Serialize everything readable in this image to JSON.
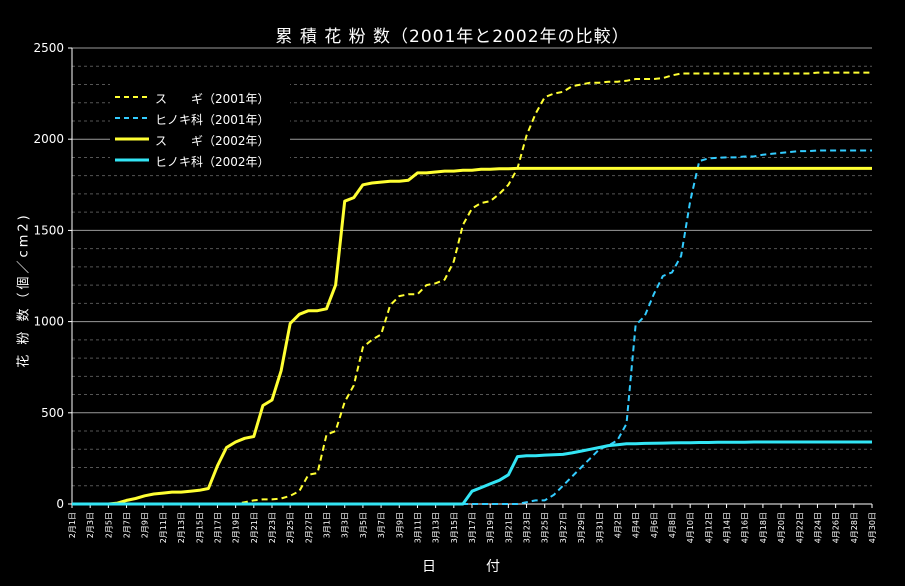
{
  "chart_data": {
    "type": "line",
    "title": "累 積 花 粉 数（2001年と2002年の比較）",
    "xlabel": "日　付",
    "ylabel": "花 粉 数（個／cm2)",
    "ylim": [
      0,
      2500
    ],
    "yticks": [
      "0",
      "500",
      "1000",
      "1500",
      "2000",
      "2500"
    ],
    "grid": true,
    "legend_placement": "top-left",
    "x": [
      "2月1日",
      "2月2日",
      "2月3日",
      "2月4日",
      "2月5日",
      "2月6日",
      "2月7日",
      "2月8日",
      "2月9日",
      "2月10日",
      "2月11日",
      "2月12日",
      "2月13日",
      "2月14日",
      "2月15日",
      "2月16日",
      "2月17日",
      "2月18日",
      "2月19日",
      "2月20日",
      "2月21日",
      "2月22日",
      "2月23日",
      "2月24日",
      "2月25日",
      "2月26日",
      "2月27日",
      "2月28日",
      "3月1日",
      "3月2日",
      "3月3日",
      "3月4日",
      "3月5日",
      "3月6日",
      "3月7日",
      "3月8日",
      "3月9日",
      "3月10日",
      "3月11日",
      "3月12日",
      "3月13日",
      "3月14日",
      "3月15日",
      "3月16日",
      "3月17日",
      "3月18日",
      "3月19日",
      "3月20日",
      "3月21日",
      "3月22日",
      "3月23日",
      "3月24日",
      "3月25日",
      "3月26日",
      "3月27日",
      "3月28日",
      "3月29日",
      "3月30日",
      "3月31日",
      "4月1日",
      "4月2日",
      "4月3日",
      "4月4日",
      "4月5日",
      "4月6日",
      "4月7日",
      "4月8日",
      "4月9日",
      "4月10日",
      "4月11日",
      "4月12日",
      "4月13日",
      "4月14日",
      "4月15日",
      "4月16日",
      "4月17日",
      "4月18日",
      "4月19日",
      "4月20日",
      "4月21日",
      "4月22日",
      "4月23日",
      "4月24日",
      "4月25日",
      "4月26日",
      "4月27日",
      "4月28日",
      "4月29日",
      "4月30日"
    ],
    "xtick_labels": [
      "2月1日",
      "2月3日",
      "2月5日",
      "2月7日",
      "2月9日",
      "2月11日",
      "2月13日",
      "2月15日",
      "2月17日",
      "2月19日",
      "2月21日",
      "2月23日",
      "2月25日",
      "2月27日",
      "3月1日",
      "3月3日",
      "3月5日",
      "3月7日",
      "3月9日",
      "3月11日",
      "3月13日",
      "3月15日",
      "3月17日",
      "3月19日",
      "3月21日",
      "3月23日",
      "3月25日",
      "3月27日",
      "3月29日",
      "3月31日",
      "4月2日",
      "4月4日",
      "4月6日",
      "4月8日",
      "4月10日",
      "4月12日",
      "4月14日",
      "4月16日",
      "4月18日",
      "4月20日",
      "4月22日",
      "4月24日",
      "4月26日",
      "4月28日",
      "4月30日"
    ],
    "series": [
      {
        "name": "ス　　ギ（2001年）",
        "color": "#FFFF33",
        "dash": true,
        "values": [
          0,
          0,
          0,
          0,
          0,
          0,
          0,
          0,
          0,
          0,
          0,
          0,
          0,
          0,
          0,
          0,
          0,
          0,
          0,
          10,
          20,
          25,
          25,
          30,
          45,
          70,
          160,
          170,
          380,
          400,
          560,
          650,
          860,
          900,
          930,
          1090,
          1140,
          1150,
          1150,
          1200,
          1210,
          1230,
          1330,
          1530,
          1620,
          1650,
          1660,
          1700,
          1750,
          1840,
          2020,
          2140,
          2230,
          2250,
          2260,
          2290,
          2300,
          2310,
          2310,
          2315,
          2315,
          2320,
          2330,
          2330,
          2330,
          2335,
          2350,
          2360,
          2360,
          2360,
          2360,
          2360,
          2360,
          2360,
          2360,
          2360,
          2360,
          2360,
          2360,
          2360,
          2360,
          2360,
          2365,
          2365,
          2365,
          2365,
          2365,
          2365,
          2365
        ]
      },
      {
        "name": "ヒノキ科（2001年）",
        "color": "#33CCFF",
        "dash": true,
        "values": [
          0,
          0,
          0,
          0,
          0,
          0,
          0,
          0,
          0,
          0,
          0,
          0,
          0,
          0,
          0,
          0,
          0,
          0,
          0,
          0,
          0,
          0,
          0,
          0,
          0,
          0,
          0,
          0,
          0,
          0,
          0,
          0,
          0,
          0,
          0,
          0,
          0,
          0,
          0,
          0,
          0,
          0,
          0,
          0,
          0,
          0,
          0,
          0,
          0,
          0,
          10,
          20,
          20,
          50,
          100,
          150,
          200,
          250,
          300,
          320,
          350,
          440,
          980,
          1030,
          1150,
          1250,
          1270,
          1360,
          1660,
          1880,
          1895,
          1898,
          1900,
          1900,
          1905,
          1905,
          1915,
          1920,
          1925,
          1930,
          1935,
          1935,
          1938,
          1938,
          1938,
          1938,
          1938,
          1938,
          1938
        ]
      },
      {
        "name": "ス　　ギ（2002年）",
        "color": "#FFFF33",
        "dash": false,
        "values": [
          0,
          0,
          0,
          0,
          0,
          5,
          20,
          30,
          45,
          55,
          60,
          65,
          65,
          70,
          75,
          85,
          210,
          310,
          340,
          360,
          370,
          540,
          570,
          730,
          990,
          1040,
          1060,
          1060,
          1070,
          1200,
          1660,
          1680,
          1750,
          1760,
          1765,
          1770,
          1770,
          1775,
          1815,
          1815,
          1820,
          1825,
          1825,
          1830,
          1830,
          1835,
          1835,
          1838,
          1838,
          1840,
          1840,
          1840,
          1840,
          1840,
          1840,
          1840,
          1840,
          1840,
          1840,
          1840,
          1840,
          1840,
          1840,
          1840,
          1840,
          1840,
          1840,
          1840,
          1840,
          1840,
          1840,
          1840,
          1840,
          1840,
          1840,
          1840,
          1840,
          1840,
          1840,
          1840,
          1840,
          1840,
          1840,
          1840,
          1840,
          1840,
          1840,
          1840,
          1840
        ]
      },
      {
        "name": "ヒノキ科（2002年）",
        "color": "#33E5F5",
        "dash": false,
        "values": [
          0,
          0,
          0,
          0,
          0,
          0,
          0,
          0,
          0,
          0,
          0,
          0,
          0,
          0,
          0,
          0,
          0,
          0,
          0,
          0,
          0,
          0,
          0,
          0,
          0,
          0,
          0,
          0,
          0,
          0,
          0,
          0,
          0,
          0,
          0,
          0,
          0,
          0,
          0,
          0,
          0,
          0,
          0,
          0,
          70,
          90,
          110,
          130,
          160,
          260,
          265,
          265,
          268,
          270,
          272,
          280,
          290,
          300,
          310,
          320,
          325,
          330,
          330,
          332,
          333,
          334,
          335,
          336,
          336,
          337,
          337,
          338,
          338,
          339,
          339,
          340,
          340,
          340,
          340,
          340,
          340,
          340,
          340,
          340,
          340,
          340,
          340,
          340,
          340
        ]
      }
    ]
  }
}
